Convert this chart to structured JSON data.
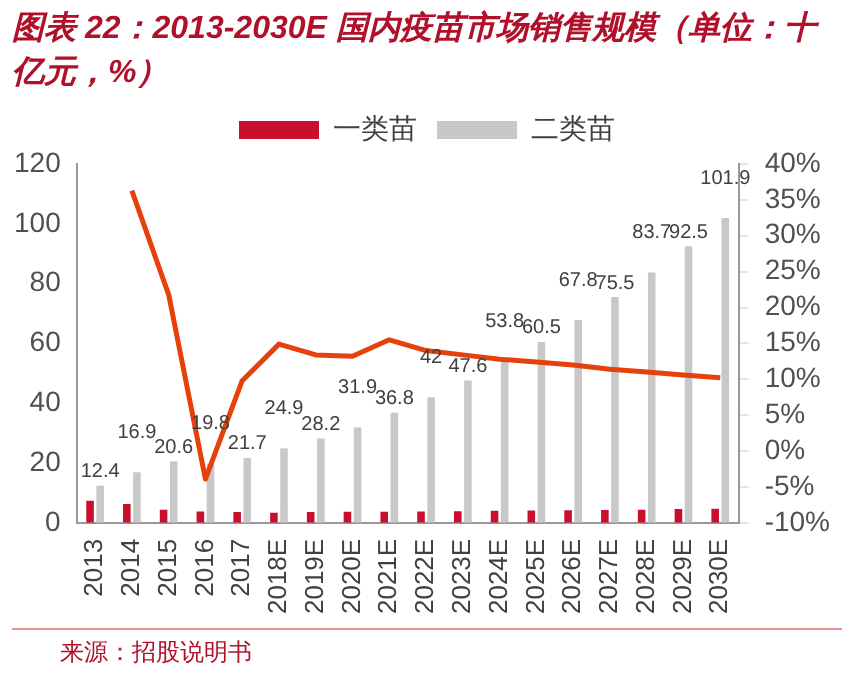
{
  "chart_data": {
    "type": "bar",
    "title": "图表 22：2013-2030E 国内疫苗市场销售规模（单位：十亿元，%）",
    "categories": [
      "2013",
      "2014",
      "2015",
      "2016",
      "2017",
      "2018E",
      "2019E",
      "2020E",
      "2021E",
      "2022E",
      "2023E",
      "2024E",
      "2025E",
      "2026E",
      "2027E",
      "2028E",
      "2029E",
      "2030E"
    ],
    "series": [
      {
        "name": "一类苗",
        "color": "#c8102e",
        "values": [
          7.4,
          6.3,
          4.4,
          3.8,
          3.6,
          3.4,
          3.6,
          3.7,
          3.7,
          3.8,
          3.9,
          4.0,
          4.1,
          4.2,
          4.3,
          4.4,
          4.6,
          4.7
        ]
      },
      {
        "name": "二类苗",
        "color": "#c8c8c8",
        "values": [
          12.4,
          16.9,
          20.6,
          19.8,
          21.7,
          24.9,
          28.2,
          31.9,
          36.8,
          42,
          47.6,
          53.8,
          60.5,
          67.8,
          75.5,
          83.7,
          92.5,
          101.9
        ],
        "value_labels": [
          "12.4",
          "16.9",
          "20.6",
          "19.8",
          "21.7",
          "24.9",
          "28.2",
          "31.9",
          "36.8",
          "42",
          "47.6",
          "53.8",
          "60.5",
          "67.8",
          "75.5",
          "83.7",
          "92.5",
          "101.9"
        ]
      },
      {
        "type": "line",
        "axis": "y2",
        "color": "#e8400a",
        "values": [
          null,
          36.3,
          21.8,
          -3.9,
          9.8,
          14.9,
          13.4,
          13.2,
          15.5,
          14.0,
          13.4,
          12.8,
          12.4,
          12.0,
          11.4,
          11.0,
          10.6,
          10.2
        ]
      }
    ],
    "ylim": [
      0,
      120
    ],
    "yticks": [
      0,
      20,
      40,
      60,
      80,
      100,
      120
    ],
    "y2lim": [
      -10,
      40
    ],
    "y2ticks": [
      {
        "value": -10,
        "label": "-10%"
      },
      {
        "value": -5,
        "label": "-5%"
      },
      {
        "value": 0,
        "label": "0%"
      },
      {
        "value": 5,
        "label": "5%"
      },
      {
        "value": 10,
        "label": "10%"
      },
      {
        "value": 15,
        "label": "15%"
      },
      {
        "value": 20,
        "label": "20%"
      },
      {
        "value": 25,
        "label": "25%"
      },
      {
        "value": 30,
        "label": "30%"
      },
      {
        "value": 35,
        "label": "35%"
      },
      {
        "value": 40,
        "label": "40%"
      }
    ],
    "grid": false,
    "legend": "top",
    "marker": "none",
    "line_style": "solid",
    "annotations": [
      "来源：招股说明书"
    ]
  }
}
